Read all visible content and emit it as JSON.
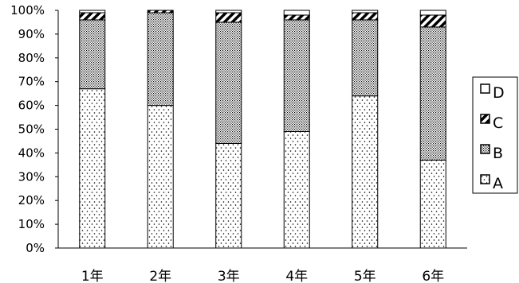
{
  "chart_data": {
    "type": "bar",
    "stacked": true,
    "percent": true,
    "categories": [
      "1年",
      "2年",
      "3年",
      "4年",
      "5年",
      "6年"
    ],
    "series": [
      {
        "name": "A",
        "values": [
          67,
          60,
          44,
          49,
          64,
          37
        ]
      },
      {
        "name": "B",
        "values": [
          29,
          39,
          51,
          47,
          32,
          56
        ]
      },
      {
        "name": "C",
        "values": [
          3,
          1,
          4,
          2,
          3,
          5
        ]
      },
      {
        "name": "D",
        "values": [
          1,
          0,
          1,
          2,
          1,
          2
        ]
      }
    ],
    "y_ticks": [
      "0%",
      "10%",
      "20%",
      "30%",
      "40%",
      "50%",
      "60%",
      "70%",
      "80%",
      "90%",
      "100%"
    ],
    "ylim": [
      0,
      100
    ],
    "legend": {
      "position": "right",
      "order": [
        "D",
        "C",
        "B",
        "A"
      ]
    },
    "grid": false,
    "patterns": {
      "A": "sparse-dots",
      "B": "dense-dots",
      "C": "diagonal-hatch",
      "D": "white"
    },
    "colors": {
      "axis": "#000000",
      "fill": "#ffffff",
      "mark": "#000000"
    }
  }
}
